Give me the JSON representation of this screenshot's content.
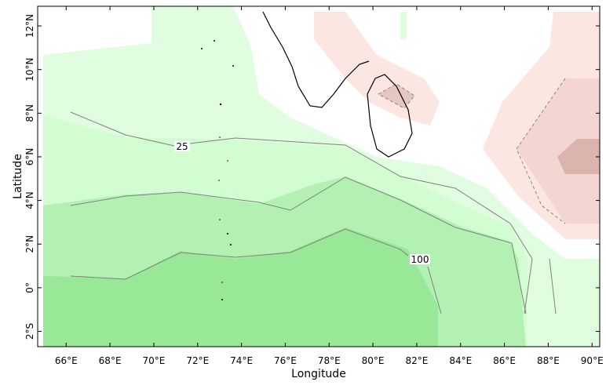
{
  "chart_data": {
    "type": "contour",
    "xlabel": "Longitude",
    "ylabel": "Latitude",
    "xlim": [
      64.7,
      90.35
    ],
    "ylim": [
      -2.7,
      12.9
    ],
    "xticks": [
      {
        "value": 66,
        "label": "66°E"
      },
      {
        "value": 68,
        "label": "68°E"
      },
      {
        "value": 70,
        "label": "70°E"
      },
      {
        "value": 72,
        "label": "72°E"
      },
      {
        "value": 74,
        "label": "74°E"
      },
      {
        "value": 76,
        "label": "76°E"
      },
      {
        "value": 78,
        "label": "78°E"
      },
      {
        "value": 80,
        "label": "80°E"
      },
      {
        "value": 82,
        "label": "82°E"
      },
      {
        "value": 84,
        "label": "84°E"
      },
      {
        "value": 86,
        "label": "86°E"
      },
      {
        "value": 88,
        "label": "88°E"
      },
      {
        "value": 90,
        "label": "90°E"
      }
    ],
    "yticks": [
      {
        "value": -2,
        "label": "2°S"
      },
      {
        "value": 0,
        "label": "0°"
      },
      {
        "value": 2,
        "label": "2°N"
      },
      {
        "value": 4,
        "label": "4°N"
      },
      {
        "value": 6,
        "label": "6°N"
      },
      {
        "value": 8,
        "label": "8°N"
      },
      {
        "value": 10,
        "label": "10°N"
      },
      {
        "value": 12,
        "label": "12°N"
      }
    ],
    "contour_labels": [
      "25",
      "100"
    ]
  }
}
